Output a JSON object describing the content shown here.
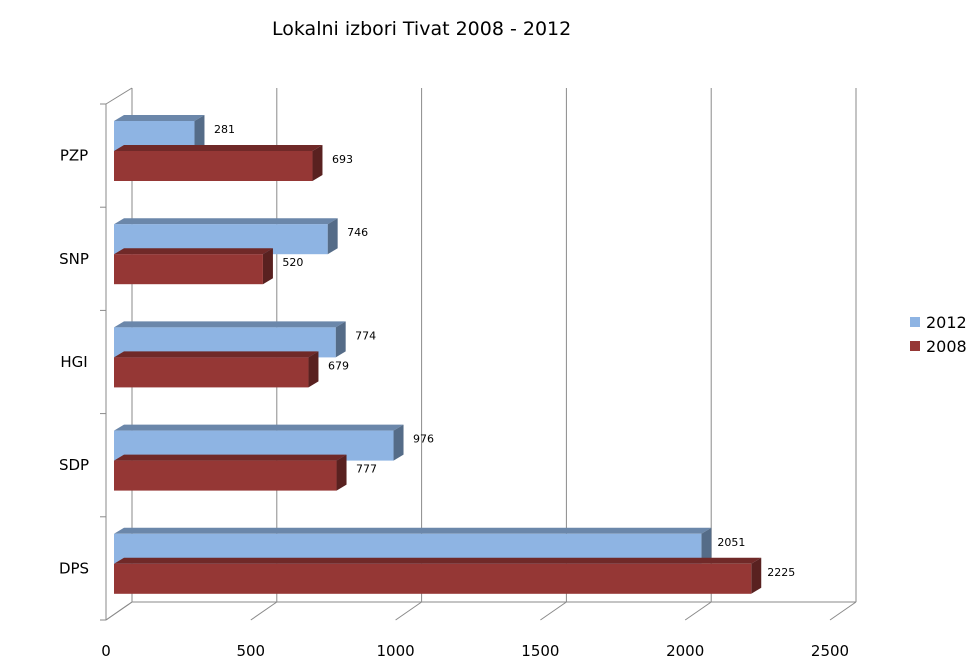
{
  "chart_data": {
    "type": "bar",
    "orientation": "horizontal",
    "title": "Lokalni izbori Tivat 2008 - 2012",
    "categories": [
      "PZP",
      "SNP",
      "HGI",
      "SDP",
      "DPS"
    ],
    "series": [
      {
        "name": "2012",
        "values": [
          281,
          746,
          774,
          976,
          2051
        ],
        "color": "#8EB4E3"
      },
      {
        "name": "2008",
        "values": [
          693,
          520,
          679,
          777,
          2225
        ],
        "color": "#953735"
      }
    ],
    "xlim": [
      0,
      2500
    ],
    "x_ticks": [
      "0",
      "500",
      "1000",
      "1500",
      "2000",
      "2500"
    ],
    "grid": true,
    "legend_position": "right",
    "style": "3d"
  }
}
